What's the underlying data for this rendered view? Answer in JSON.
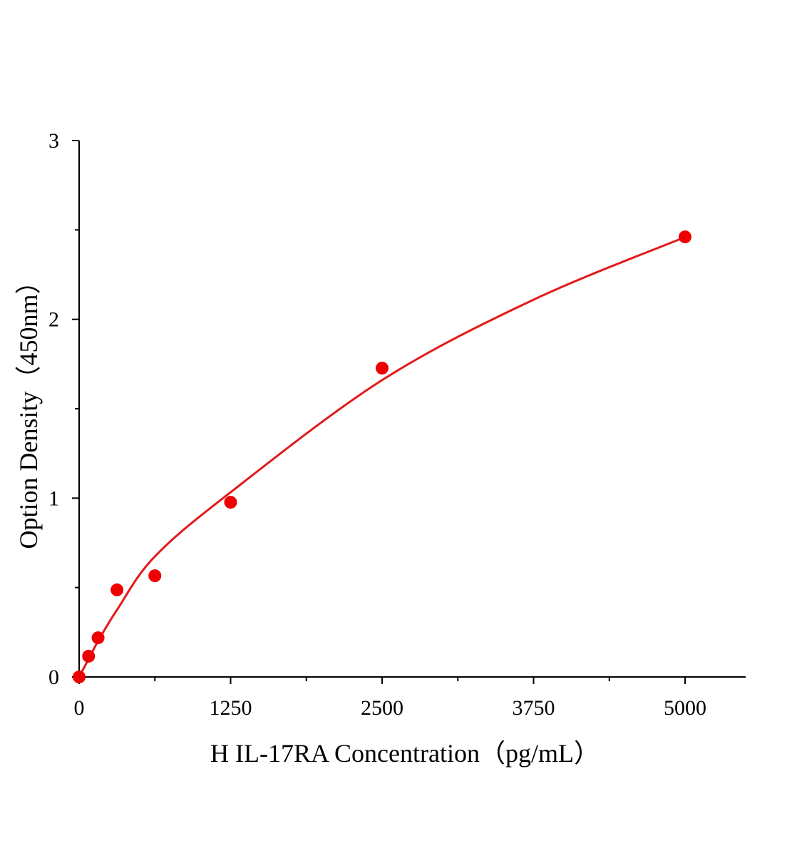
{
  "chart_data": {
    "type": "scatter",
    "title": "",
    "xlabel": "H IL-17RA Concentration（pg/mL）",
    "ylabel": "Option Density（450nm）",
    "xlim": [
      0,
      5500
    ],
    "ylim": [
      0,
      3
    ],
    "x_ticks": [
      "0",
      "1250",
      "2500",
      "3750",
      "5000"
    ],
    "y_ticks": [
      "0",
      "1",
      "2",
      "3"
    ],
    "grid": false,
    "colors": {
      "points": "#ee0000",
      "curve": "#e31a1c",
      "axis": "#000000"
    },
    "series": [
      {
        "x": [
          0,
          78.125,
          156.25,
          312.5,
          625,
          1250,
          2500,
          5000
        ],
        "y": [
          0.0,
          0.116,
          0.219,
          0.487,
          0.566,
          0.977,
          1.727,
          2.461
        ]
      }
    ],
    "fit_curve": {
      "x": [
        0,
        78.125,
        156.25,
        312.5,
        625,
        1250,
        2500,
        3750,
        5000
      ],
      "y": [
        0.0,
        0.1,
        0.2,
        0.375,
        0.674,
        1.033,
        1.66,
        2.11,
        2.46
      ]
    }
  }
}
